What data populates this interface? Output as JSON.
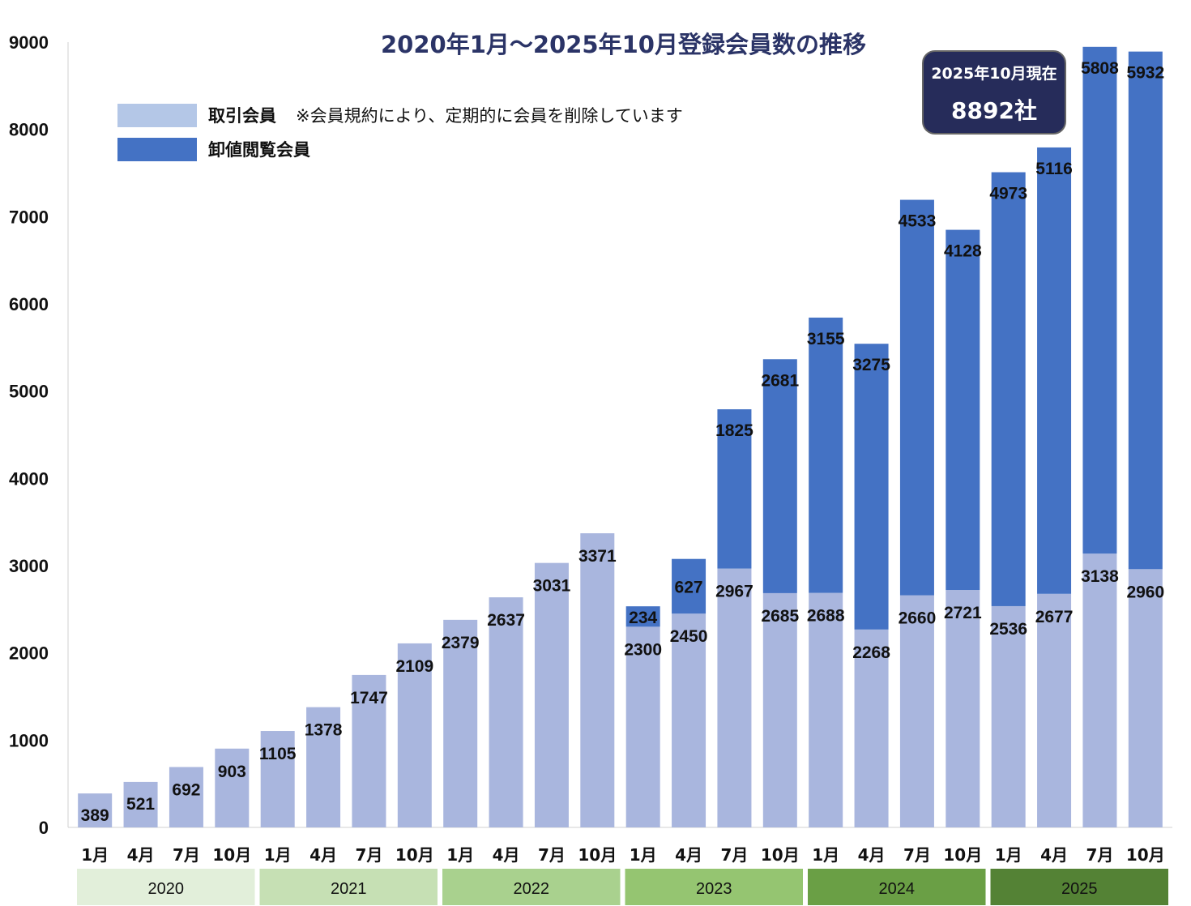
{
  "chart_data": {
    "type": "bar",
    "stacked": true,
    "title": "2020年1月～2025年10月登録会員数の推移",
    "categories": [
      "1月",
      "4月",
      "7月",
      "10月",
      "1月",
      "4月",
      "7月",
      "10月",
      "1月",
      "4月",
      "7月",
      "10月",
      "1月",
      "4月",
      "7月",
      "10月",
      "1月",
      "4月",
      "7月",
      "10月",
      "1月",
      "4月",
      "7月",
      "10月"
    ],
    "year_groups": [
      {
        "label": "2020",
        "count": 4,
        "color": "#e2efda"
      },
      {
        "label": "2021",
        "count": 4,
        "color": "#c6e0b4"
      },
      {
        "label": "2022",
        "count": 4,
        "color": "#a9d18e"
      },
      {
        "label": "2023",
        "count": 4,
        "color": "#95c571"
      },
      {
        "label": "2024",
        "count": 4,
        "color": "#6a9f45"
      },
      {
        "label": "2025",
        "count": 4,
        "color": "#548235"
      }
    ],
    "series": [
      {
        "name": "取引会員",
        "color": "#a9b6de",
        "values": [
          389,
          521,
          692,
          903,
          1105,
          1378,
          1747,
          2109,
          2379,
          2637,
          3031,
          3371,
          2300,
          2450,
          2967,
          2685,
          2688,
          2268,
          2660,
          2721,
          2536,
          2677,
          3138,
          2960
        ]
      },
      {
        "name": "卸値閲覧会員",
        "color": "#4472c4",
        "values": [
          null,
          null,
          null,
          null,
          null,
          null,
          null,
          null,
          null,
          null,
          null,
          null,
          234,
          627,
          1825,
          2681,
          3155,
          3275,
          4533,
          4128,
          4973,
          5116,
          5808,
          5932
        ]
      }
    ],
    "ylim": [
      0,
      9000
    ],
    "yticks": [
      0,
      1000,
      2000,
      3000,
      4000,
      5000,
      6000,
      7000,
      8000,
      9000
    ],
    "legend_placement": "top-left",
    "legend_note": "※会員規約により、定期的に会員を削除しています",
    "annotation": {
      "line1": "2025年10月現在",
      "line2": "8892社"
    }
  }
}
